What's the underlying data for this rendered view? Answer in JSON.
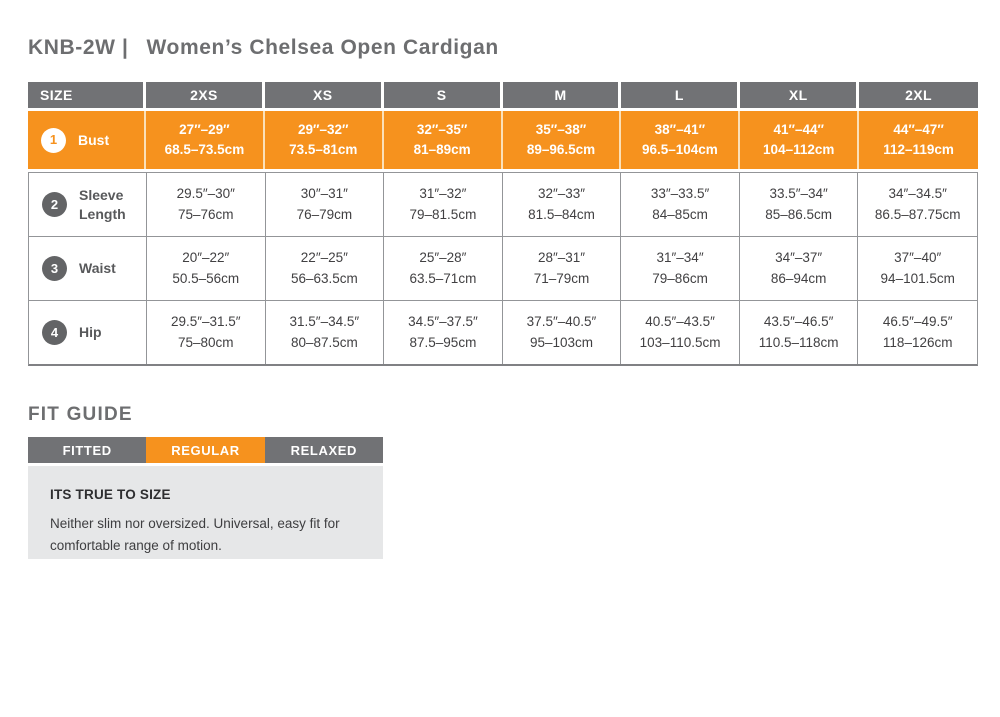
{
  "title": {
    "code": "KNB-2W |",
    "name": "Women’s Chelsea Open Cardigan"
  },
  "size_chart": {
    "header": [
      "SIZE",
      "2XS",
      "XS",
      "S",
      "M",
      "L",
      "XL",
      "2XL"
    ],
    "rows": [
      {
        "num": "1",
        "label": "Bust",
        "highlight": true,
        "cells": [
          {
            "in": "27″–29″",
            "cm": "68.5–73.5cm"
          },
          {
            "in": "29″–32″",
            "cm": "73.5–81cm"
          },
          {
            "in": "32″–35″",
            "cm": "81–89cm"
          },
          {
            "in": "35″–38″",
            "cm": "89–96.5cm"
          },
          {
            "in": "38″–41″",
            "cm": "96.5–104cm"
          },
          {
            "in": "41″–44″",
            "cm": "104–112cm"
          },
          {
            "in": "44″–47″",
            "cm": "112–119cm"
          }
        ]
      },
      {
        "num": "2",
        "label": "Sleeve Length",
        "highlight": false,
        "cells": [
          {
            "in": "29.5″–30″",
            "cm": "75–76cm"
          },
          {
            "in": "30″–31″",
            "cm": "76–79cm"
          },
          {
            "in": "31″–32″",
            "cm": "79–81.5cm"
          },
          {
            "in": "32″–33″",
            "cm": "81.5–84cm"
          },
          {
            "in": "33″–33.5″",
            "cm": "84–85cm"
          },
          {
            "in": "33.5″–34″",
            "cm": "85–86.5cm"
          },
          {
            "in": "34″–34.5″",
            "cm": "86.5–87.75cm"
          }
        ]
      },
      {
        "num": "3",
        "label": "Waist",
        "highlight": false,
        "cells": [
          {
            "in": "20″–22″",
            "cm": "50.5–56cm"
          },
          {
            "in": "22″–25″",
            "cm": "56–63.5cm"
          },
          {
            "in": "25″–28″",
            "cm": "63.5–71cm"
          },
          {
            "in": "28″–31″",
            "cm": "71–79cm"
          },
          {
            "in": "31″–34″",
            "cm": "79–86cm"
          },
          {
            "in": "34″–37″",
            "cm": "86–94cm"
          },
          {
            "in": "37″–40″",
            "cm": "94–101.5cm"
          }
        ]
      },
      {
        "num": "4",
        "label": "Hip",
        "highlight": false,
        "cells": [
          {
            "in": "29.5″–31.5″",
            "cm": "75–80cm"
          },
          {
            "in": "31.5″–34.5″",
            "cm": "80–87.5cm"
          },
          {
            "in": "34.5″–37.5″",
            "cm": "87.5–95cm"
          },
          {
            "in": "37.5″–40.5″",
            "cm": "95–103cm"
          },
          {
            "in": "40.5″–43.5″",
            "cm": "103–110.5cm"
          },
          {
            "in": "43.5″–46.5″",
            "cm": "110.5–118cm"
          },
          {
            "in": "46.5″–49.5″",
            "cm": "118–126cm"
          }
        ]
      }
    ]
  },
  "fit_guide": {
    "title": "FIT GUIDE",
    "tabs": [
      {
        "label": "FITTED",
        "active": false
      },
      {
        "label": "REGULAR",
        "active": true
      },
      {
        "label": "RELAXED",
        "active": false
      }
    ],
    "panel_title": "ITS TRUE TO SIZE",
    "panel_text": "Neither slim nor oversized. Universal, easy fit for comfortable range of motion."
  },
  "colors": {
    "accent_orange": "#F6921E",
    "header_gray": "#717275",
    "circle_gray": "#636466",
    "body_text": "#414042",
    "border_gray": "#939598",
    "panel_gray": "#E6E7E8",
    "title_gray": "#6D6E70"
  }
}
